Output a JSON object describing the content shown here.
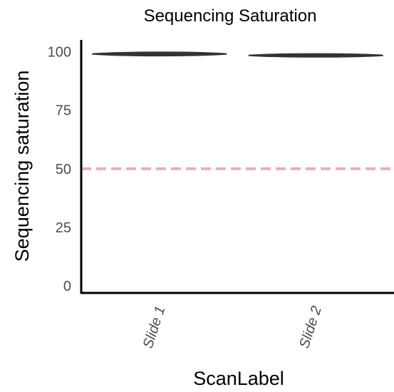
{
  "chart_data": {
    "type": "violin",
    "title": "Sequencing Saturation",
    "xlabel": "ScanLabel",
    "ylabel": "Sequencing saturation",
    "categories": [
      "Slide 1",
      "Slide 2"
    ],
    "series": [
      {
        "values": [
          {
            "category": "Slide 1",
            "min": 98.5,
            "max": 99.5,
            "median": 99.0
          },
          {
            "category": "Slide 2",
            "min": 98.0,
            "max": 98.8,
            "median": 98.4
          }
        ]
      }
    ],
    "yticks": [
      0,
      25,
      50,
      75,
      100
    ],
    "ylim": [
      -3,
      105
    ],
    "reference_line": {
      "y": 50,
      "style": "dashed",
      "color": "#f4a6c8"
    },
    "grid": false,
    "colors": {
      "violin": "#333333",
      "axis": "#000000",
      "tick_label": "#4d4d4d"
    }
  }
}
